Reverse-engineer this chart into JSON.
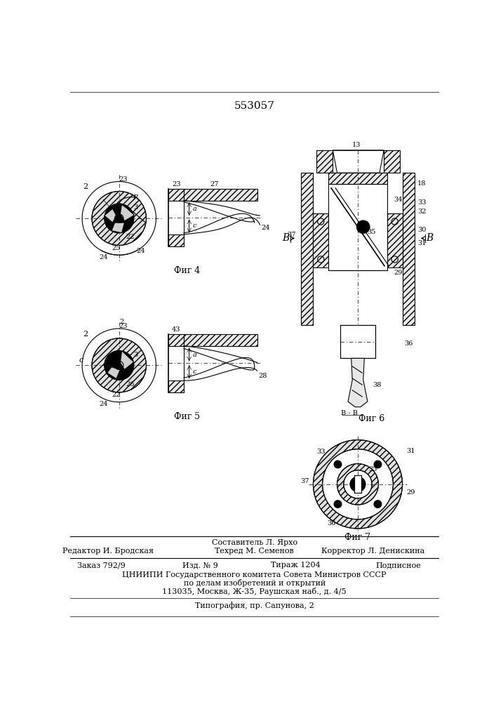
{
  "patent_number": "553057",
  "bg_color": "#ffffff",
  "fig_labels": [
    "Фиг 4",
    "Фиг 5",
    "Фиг 6",
    "Фиг 7"
  ],
  "footer_line0_center": "Составитель Л. Ярхо",
  "footer_line1_left": "Редактор И. Бродская",
  "footer_line1_center": "Техред М. Семенов",
  "footer_line1_right": "Корректор Л. Денискина",
  "footer_line2_left": "Заказ 792/9",
  "footer_line2_c1": "Изд. № 9",
  "footer_line2_c2": "Тираж 1204",
  "footer_line2_right": "Подписное",
  "footer_line3": "ЦНИИПИ Государственного комитета Совета Министров СССР",
  "footer_line4": "по делам изобретений и открытий",
  "footer_line5": "113035, Москва, Ж-35, Раушская наб., д. 4/5",
  "footer_line6": "Типография, пр. Сапунова, 2"
}
